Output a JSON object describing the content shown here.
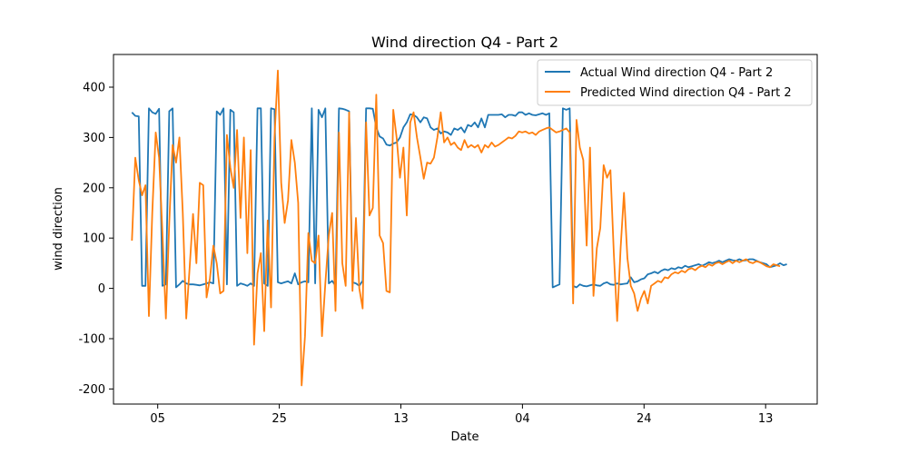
{
  "chart_data": {
    "type": "line",
    "title": "Wind direction Q4 - Part 2",
    "xlabel": "Date",
    "ylabel": "wind direction",
    "x_range": [
      -5,
      186
    ],
    "ylim": [
      -230,
      465
    ],
    "x_ticks": [
      {
        "x": 7,
        "label": "05"
      },
      {
        "x": 40,
        "label": "25"
      },
      {
        "x": 73,
        "label": "13"
      },
      {
        "x": 106,
        "label": "04"
      },
      {
        "x": 139,
        "label": "24"
      },
      {
        "x": 172,
        "label": "13"
      }
    ],
    "y_ticks": [
      -200,
      -100,
      0,
      100,
      200,
      300,
      400
    ],
    "grid": false,
    "legend_position": "upper right",
    "series": [
      {
        "name": "Actual Wind direction Q4 - Part 2",
        "color": "#1f77b4",
        "values": [
          350,
          343,
          342,
          5,
          5,
          358,
          350,
          347,
          357,
          5,
          8,
          352,
          358,
          2,
          8,
          15,
          10,
          8,
          8,
          7,
          6,
          8,
          10,
          12,
          10,
          352,
          345,
          358,
          8,
          355,
          350,
          5,
          10,
          8,
          5,
          10,
          5,
          358,
          358,
          10,
          5,
          358,
          356,
          12,
          10,
          12,
          14,
          10,
          30,
          8,
          12,
          14,
          12,
          358,
          10,
          355,
          340,
          358,
          10,
          15,
          5,
          358,
          357,
          355,
          352,
          12,
          10,
          5,
          15,
          358,
          358,
          357,
          320,
          302,
          298,
          286,
          284,
          288,
          290,
          300,
          320,
          330,
          346,
          345,
          340,
          330,
          340,
          338,
          320,
          315,
          318,
          308,
          312,
          310,
          305,
          318,
          315,
          320,
          310,
          325,
          322,
          330,
          320,
          338,
          320,
          345,
          345,
          345,
          345,
          346,
          340,
          345,
          345,
          343,
          350,
          350,
          345,
          348,
          345,
          344,
          346,
          348,
          345,
          348,
          2,
          5,
          8,
          358,
          355,
          358,
          5,
          2,
          8,
          5,
          4,
          6,
          8,
          6,
          5,
          10,
          12,
          8,
          7,
          10,
          8,
          9,
          10,
          22,
          12,
          14,
          18,
          20,
          28,
          30,
          33,
          30,
          35,
          38,
          36,
          40,
          38,
          42,
          40,
          45,
          42,
          44,
          46,
          48,
          45,
          48,
          52,
          50,
          52,
          55,
          52,
          55,
          58,
          56,
          55,
          58,
          55,
          56,
          58,
          58,
          55,
          52,
          50,
          48,
          42,
          44,
          46,
          50,
          46,
          48
        ],
        "x_start": 0,
        "x_step": 0.9211
      },
      {
        "name": "Predicted Wind direction Q4 - Part 2",
        "color": "#ff7f0e",
        "values": [
          95,
          260,
          215,
          185,
          205,
          -55,
          150,
          310,
          260,
          110,
          -60,
          130,
          285,
          250,
          300,
          150,
          -60,
          40,
          148,
          50,
          210,
          205,
          -18,
          20,
          85,
          50,
          -10,
          -5,
          305,
          240,
          200,
          315,
          140,
          300,
          70,
          275,
          -112,
          30,
          70,
          -85,
          135,
          -38,
          300,
          433,
          210,
          130,
          175,
          295,
          250,
          170,
          -193,
          -95,
          110,
          55,
          50,
          105,
          -95,
          10,
          105,
          150,
          -45,
          310,
          50,
          5,
          350,
          -5,
          140,
          0,
          -40,
          330,
          145,
          160,
          385,
          105,
          90,
          -5,
          -8,
          355,
          300,
          220,
          280,
          145,
          330,
          350,
          300,
          260,
          218,
          250,
          248,
          260,
          300,
          350,
          290,
          300,
          285,
          290,
          280,
          275,
          295,
          280,
          285,
          280,
          285,
          270,
          285,
          280,
          290,
          282,
          285,
          290,
          295,
          300,
          298,
          303,
          312,
          310,
          312,
          308,
          310,
          305,
          312,
          315,
          318,
          320,
          315,
          310,
          312,
          315,
          318,
          310,
          -30,
          335,
          280,
          255,
          85,
          280,
          -15,
          80,
          120,
          245,
          220,
          235,
          70,
          -65,
          80,
          190,
          60,
          5,
          -10,
          -45,
          -20,
          -5,
          -30,
          5,
          10,
          15,
          12,
          22,
          20,
          28,
          32,
          30,
          35,
          32,
          38,
          40,
          36,
          42,
          45,
          42,
          48,
          45,
          50,
          52,
          48,
          52,
          55,
          50,
          55,
          52,
          55,
          58,
          52,
          50,
          54,
          52,
          48,
          44,
          42,
          48,
          46,
          44
        ],
        "x_start": 0,
        "x_step": 0.9211
      }
    ]
  }
}
